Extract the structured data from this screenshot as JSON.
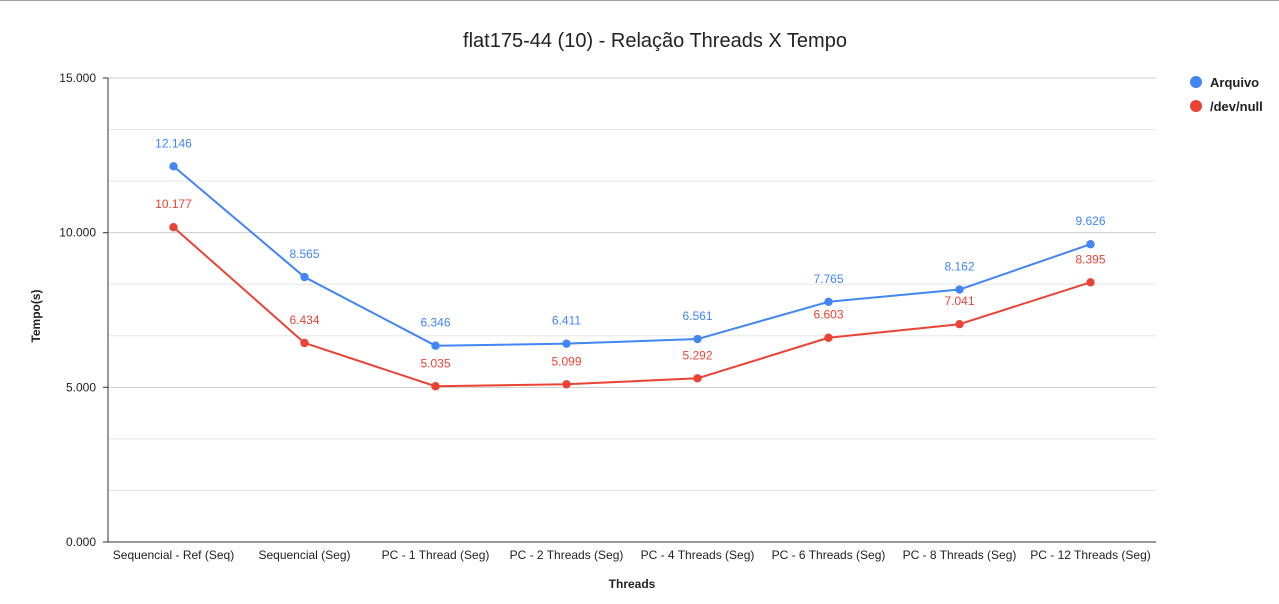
{
  "chart_data": {
    "type": "line",
    "title": "flat175-44 (10) - Relação Threads X Tempo",
    "xlabel": "Threads",
    "ylabel": "Tempo(s)",
    "ylim": [
      0,
      15
    ],
    "yticks": [
      "0.000",
      "5.000",
      "10.000",
      "15.000"
    ],
    "grid": true,
    "legend_position": "top-right",
    "categories": [
      "Sequencial - Ref (Seq)",
      "Sequencial (Seg)",
      "PC - 1 Thread (Seg)",
      "PC - 2 Threads (Seg)",
      "PC - 4 Threads (Seg)",
      "PC - 6 Threads (Seg)",
      "PC - 8 Threads (Seg)",
      "PC - 12 Threads (Seg)"
    ],
    "series": [
      {
        "name": "Arquivo",
        "color": "#4285f4",
        "values": [
          12.146,
          8.565,
          6.346,
          6.411,
          6.561,
          7.765,
          8.162,
          9.626
        ],
        "labels": [
          "12.146",
          "8.565",
          "6.346",
          "6.411",
          "6.561",
          "7.765",
          "8.162",
          "9.626"
        ]
      },
      {
        "name": "/dev/null",
        "color": "#ea4335",
        "values": [
          10.177,
          6.434,
          5.035,
          5.099,
          5.292,
          6.603,
          7.041,
          8.395
        ],
        "labels": [
          "10.177",
          "6.434",
          "5.035",
          "5.099",
          "5.292",
          "6.603",
          "7.041",
          "8.395"
        ]
      }
    ]
  }
}
